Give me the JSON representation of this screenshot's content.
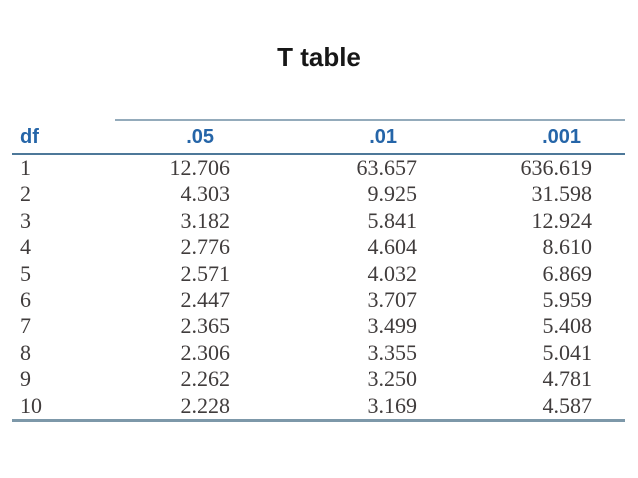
{
  "page": {
    "title": "T table"
  },
  "chart_data": {
    "type": "table",
    "title": "T table",
    "columns": [
      "df",
      ".05",
      ".01",
      ".001"
    ],
    "rows": [
      [
        "1",
        "12.706",
        "63.657",
        "636.619"
      ],
      [
        "2",
        "4.303",
        "9.925",
        "31.598"
      ],
      [
        "3",
        "3.182",
        "5.841",
        "12.924"
      ],
      [
        "4",
        "2.776",
        "4.604",
        "8.610"
      ],
      [
        "5",
        "2.571",
        "4.032",
        "6.869"
      ],
      [
        "6",
        "2.447",
        "3.707",
        "5.959"
      ],
      [
        "7",
        "2.365",
        "3.499",
        "5.408"
      ],
      [
        "8",
        "2.306",
        "3.355",
        "5.041"
      ],
      [
        "9",
        "2.262",
        "3.250",
        "4.781"
      ],
      [
        "10",
        "2.228",
        "3.169",
        "4.587"
      ]
    ],
    "layout": {
      "header_text_color": "#2565a8",
      "body_text_color": "#403c3c",
      "rule_top_color": "#94abbb",
      "rule_header_color": "#4d7899",
      "rule_bottom_color": "#7d98a9",
      "background": "#ffffff"
    }
  }
}
